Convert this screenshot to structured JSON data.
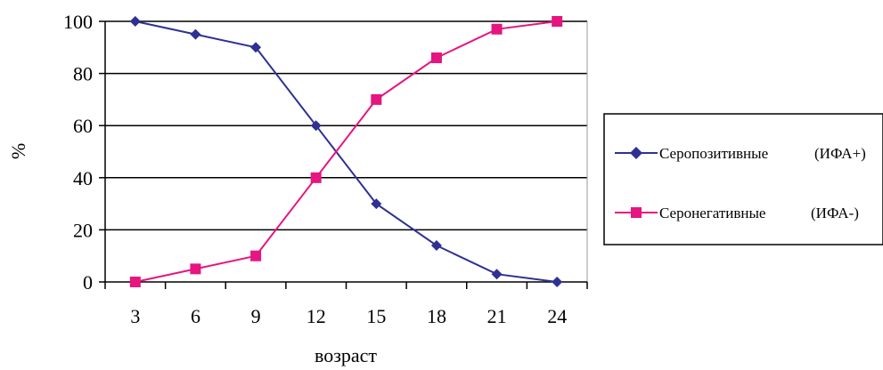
{
  "chart_data": {
    "type": "line",
    "title": "",
    "xlabel": "возраст",
    "ylabel": "%",
    "categories": [
      "3",
      "6",
      "9",
      "12",
      "15",
      "18",
      "21",
      "24"
    ],
    "ylim": [
      0,
      100
    ],
    "yticks": [
      "0",
      "20",
      "40",
      "60",
      "80",
      "100"
    ],
    "grid": "horizontal",
    "legend_position": "right",
    "series": [
      {
        "name": "Серопозитивные",
        "tag": "(ИФА+)",
        "color": "#2e3192",
        "marker": "diamond",
        "values": [
          100,
          95,
          90,
          60,
          30,
          14,
          3,
          0
        ]
      },
      {
        "name": "Серонегативные",
        "tag": "(ИФА-)",
        "color": "#e6157f",
        "marker": "square",
        "values": [
          0,
          5,
          10,
          40,
          70,
          86,
          97,
          100
        ]
      }
    ]
  }
}
